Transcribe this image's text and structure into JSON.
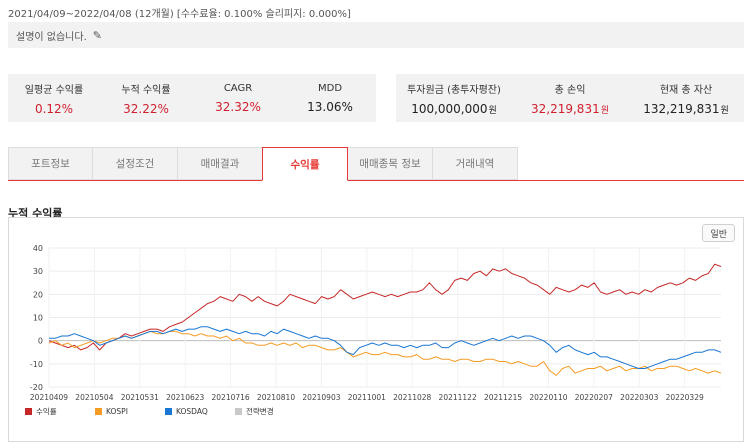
{
  "period_text": "2021/04/09~2022/04/08 (12개월) [수수료율: 0.100% 슬리피지: 0.000%]",
  "description": "설명이 없습니다.",
  "stats_left": [
    {
      "label": "일평균 수익률",
      "value": "0.12%",
      "color": "#d0202f"
    },
    {
      "label": "누적 수익률",
      "value": "32.22%",
      "color": "#d0202f"
    },
    {
      "label": "CAGR",
      "value": "32.32%",
      "color": "#d0202f"
    },
    {
      "label": "MDD",
      "value": "13.06%",
      "color": "#222222"
    }
  ],
  "stats_right": [
    {
      "label": "투자원금 (총투자평잔)",
      "value": "100,000,000",
      "unit": "원",
      "color": "#222222"
    },
    {
      "label": "총 손익",
      "value": "32,219,831",
      "unit": "원",
      "color": "#d0202f"
    },
    {
      "label": "현재 총 자산",
      "value": "132,219,831",
      "unit": "원",
      "color": "#222222"
    }
  ],
  "tabs": [
    "포트정보",
    "설정조건",
    "매매결과",
    "수익률",
    "매매종목 정보",
    "거래내역"
  ],
  "active_tab": "수익률",
  "section_title": "누적 수익률",
  "chart_button": "일반",
  "chart_data": {
    "type": "line",
    "ylim": [
      -20,
      40
    ],
    "yticks": [
      -20,
      -10,
      0,
      10,
      20,
      30,
      40
    ],
    "xticks": [
      "20210409",
      "20210504",
      "20210531",
      "20210623",
      "20210716",
      "20210810",
      "20210903",
      "20211001",
      "20211028",
      "20211122",
      "20211215",
      "20220110",
      "20220207",
      "20220303",
      "20220329"
    ],
    "grid": true,
    "legend_position": "bottom-left",
    "series": [
      {
        "name": "수익률",
        "color": "#c62828",
        "values": [
          0,
          -1,
          -2,
          -3,
          -2,
          -4,
          -3,
          -1,
          -4,
          -1,
          0,
          1,
          3,
          2,
          3,
          4,
          5,
          5,
          4,
          6,
          7,
          8,
          10,
          12,
          14,
          16,
          17,
          19,
          18,
          17,
          20,
          19,
          17,
          19,
          17,
          16,
          15,
          17,
          20,
          19,
          18,
          17,
          16,
          19,
          18,
          19,
          22,
          20,
          18,
          19,
          20,
          21,
          20,
          19,
          20,
          19,
          20,
          21,
          21,
          22,
          25,
          22,
          20,
          22,
          26,
          27,
          26,
          29,
          30,
          28,
          31,
          30,
          31,
          29,
          28,
          27,
          25,
          24,
          22,
          20,
          23,
          22,
          21,
          22,
          24,
          23,
          25,
          21,
          20,
          21,
          22,
          20,
          21,
          20,
          22,
          21,
          23,
          24,
          25,
          24,
          25,
          27,
          26,
          28,
          29,
          33,
          32
        ]
      },
      {
        "name": "KOSPI",
        "color": "#f59b23",
        "values": [
          -1,
          0,
          -2,
          -1,
          -3,
          -2,
          -1,
          0,
          -1,
          0,
          1,
          1,
          2,
          1,
          2,
          3,
          4,
          3,
          3,
          4,
          4,
          3,
          3,
          2,
          3,
          2,
          2,
          1,
          2,
          0,
          1,
          -1,
          -1,
          -2,
          -2,
          -1,
          -2,
          -1,
          -2,
          -1,
          -3,
          -2,
          -2,
          -3,
          -4,
          -4,
          -3,
          -5,
          -7,
          -6,
          -5,
          -6,
          -6,
          -5,
          -6,
          -6,
          -7,
          -7,
          -6,
          -8,
          -8,
          -7,
          -8,
          -8,
          -9,
          -8,
          -8,
          -9,
          -9,
          -8,
          -8,
          -9,
          -9,
          -10,
          -9,
          -10,
          -11,
          -11,
          -9,
          -13,
          -15,
          -12,
          -11,
          -14,
          -13,
          -12,
          -12,
          -11,
          -13,
          -12,
          -11,
          -13,
          -12,
          -12,
          -11,
          -13,
          -12,
          -12,
          -11,
          -11,
          -12,
          -13,
          -12,
          -13,
          -14,
          -13,
          -14
        ]
      },
      {
        "name": "KOSDAQ",
        "color": "#1976d2",
        "values": [
          1,
          1,
          2,
          2,
          3,
          2,
          1,
          0,
          -2,
          -1,
          0,
          1,
          2,
          1,
          2,
          3,
          4,
          4,
          3,
          4,
          5,
          4,
          5,
          5,
          6,
          6,
          5,
          4,
          5,
          4,
          3,
          4,
          3,
          3,
          2,
          4,
          3,
          5,
          4,
          3,
          2,
          1,
          2,
          1,
          1,
          0,
          -2,
          -5,
          -6,
          -3,
          -2,
          -1,
          -2,
          -1,
          -2,
          -2,
          -3,
          -2,
          -3,
          -2,
          -2,
          -1,
          -3,
          -3,
          -1,
          0,
          -1,
          -2,
          -1,
          0,
          1,
          0,
          1,
          2,
          1,
          2,
          2,
          1,
          0,
          -2,
          -5,
          -3,
          -2,
          -4,
          -5,
          -6,
          -5,
          -7,
          -7,
          -8,
          -9,
          -10,
          -11,
          -12,
          -12,
          -11,
          -10,
          -9,
          -8,
          -8,
          -7,
          -6,
          -5,
          -5,
          -4,
          -4,
          -5
        ]
      },
      {
        "name": "전략변경",
        "color": "#c8c8c8",
        "values": []
      }
    ]
  }
}
